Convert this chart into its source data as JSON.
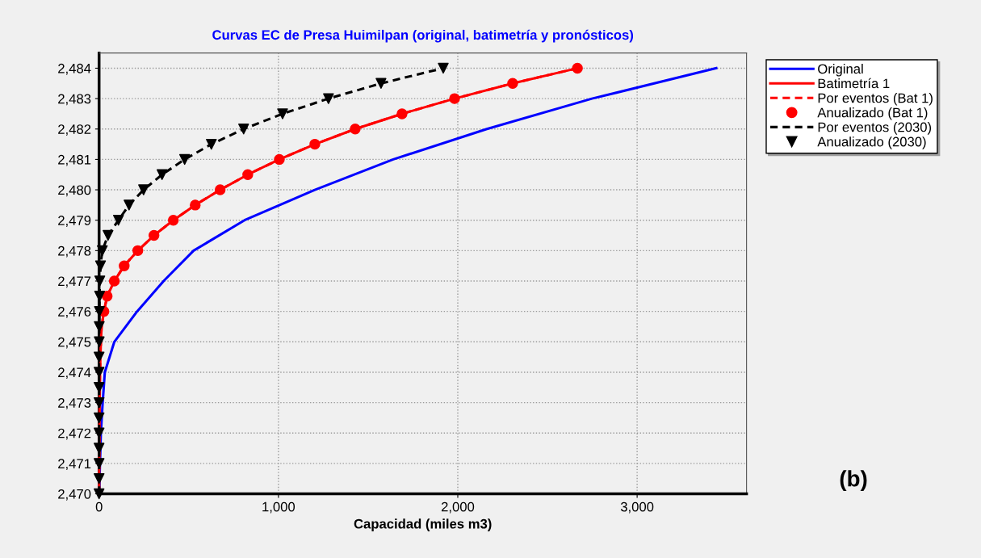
{
  "chart_data": {
    "type": "line",
    "title": "Curvas EC de Presa Huimilpan (original, batimetría y pronósticos)",
    "xlabel": "Capacidad (miles m3)",
    "xlim": [
      0,
      3610
    ],
    "ylim": [
      2470,
      2484.5
    ],
    "xticks": [
      0,
      {
        "value": 1000,
        "label": "1,000"
      },
      {
        "value": 2000,
        "label": "2,000"
      },
      {
        "value": 3000,
        "label": "3,000"
      }
    ],
    "yticks": [
      {
        "value": 2470,
        "label": "2,470"
      },
      {
        "value": 2471,
        "label": "2,471"
      },
      {
        "value": 2472,
        "label": "2,472"
      },
      {
        "value": 2473,
        "label": "2,473"
      },
      {
        "value": 2474,
        "label": "2,474"
      },
      {
        "value": 2475,
        "label": "2,475"
      },
      {
        "value": 2476,
        "label": "2,476"
      },
      {
        "value": 2477,
        "label": "2,477"
      },
      {
        "value": 2478,
        "label": "2,478"
      },
      {
        "value": 2479,
        "label": "2,479"
      },
      {
        "value": 2480,
        "label": "2,480"
      },
      {
        "value": 2481,
        "label": "2,481"
      },
      {
        "value": 2482,
        "label": "2,482"
      },
      {
        "value": 2483,
        "label": "2,483"
      },
      {
        "value": 2484,
        "label": "2,484"
      }
    ],
    "grid": true,
    "legend": "top right",
    "annotations": [
      "(b)"
    ],
    "series": [
      {
        "name": "Original",
        "color": "#0000ff",
        "line_style": "solid",
        "marker": "none",
        "x": [
          0,
          10,
          20,
          32,
          85,
          212,
          360,
          527,
          811,
          1203,
          1640,
          2162,
          2748,
          3441
        ],
        "values": [
          2470,
          2472,
          2473,
          2474,
          2475,
          2476,
          2477,
          2478,
          2479,
          2480,
          2481,
          2482,
          2483,
          2484
        ]
      },
      {
        "name": "Batimetría 1",
        "color": "#ff0000",
        "line_style": "solid",
        "marker": "none",
        "x": [
          0,
          1,
          2,
          3,
          5,
          10,
          14,
          27,
          45,
          85,
          140,
          216,
          306,
          414,
          536,
          675,
          829,
          1005,
          1203,
          1428,
          1689,
          1982,
          2306,
          2667
        ],
        "values": [
          2470,
          2471,
          2472,
          2473,
          2474,
          2475,
          2475.5,
          2476,
          2476.5,
          2477,
          2477.5,
          2478,
          2478.5,
          2479,
          2479.5,
          2480,
          2480.5,
          2481,
          2481.5,
          2482,
          2482.5,
          2483,
          2483.5,
          2484
        ]
      },
      {
        "name": "Por eventos (Bat 1)",
        "color": "#ff0000",
        "line_style": "dashed",
        "marker": "none",
        "x": [
          0,
          1,
          2,
          3,
          5,
          10,
          14,
          27,
          45,
          85,
          140,
          216,
          306,
          414,
          536,
          675,
          829,
          1005,
          1203,
          1428,
          1689,
          1982,
          2306,
          2667
        ],
        "values": [
          2470,
          2471,
          2472,
          2473,
          2474,
          2475,
          2475.5,
          2476,
          2476.5,
          2477,
          2477.5,
          2478,
          2478.5,
          2479,
          2479.5,
          2480,
          2480.5,
          2481,
          2481.5,
          2482,
          2482.5,
          2483,
          2483.5,
          2484
        ]
      },
      {
        "name": "Anualizado (Bat 1)",
        "type": "scatter",
        "color": "#ff0000",
        "marker": "circle",
        "x": [
          27,
          45,
          85,
          140,
          216,
          306,
          414,
          536,
          675,
          829,
          1005,
          1203,
          1428,
          1689,
          1982,
          2306,
          2667
        ],
        "values": [
          2476,
          2476.5,
          2477,
          2477.5,
          2478,
          2478.5,
          2479,
          2479.5,
          2480,
          2480.5,
          2481,
          2481.5,
          2482,
          2482.5,
          2483,
          2483.5,
          2484
        ]
      },
      {
        "name": "Por eventos (2030)",
        "color": "#000000",
        "line_style": "dashed",
        "marker": "none",
        "x": [
          0,
          0,
          0,
          0,
          0,
          0,
          0,
          0,
          0,
          0,
          1,
          1,
          2,
          3,
          4,
          8,
          18,
          50,
          108,
          167,
          248,
          351,
          477,
          626,
          806,
          1023,
          1279,
          1572,
          1919
        ],
        "values": [
          2470,
          2470.5,
          2471,
          2471.5,
          2472,
          2472.5,
          2473,
          2473.5,
          2474,
          2474.5,
          2475,
          2475.5,
          2476,
          2476.5,
          2477,
          2477.5,
          2478,
          2478.5,
          2479,
          2479.5,
          2480,
          2480.5,
          2481,
          2481.5,
          2482,
          2482.5,
          2483,
          2483.5,
          2484
        ]
      },
      {
        "name": "Anualizado (2030)",
        "type": "scatter",
        "color": "#000000",
        "marker": "triangle",
        "x": [
          0,
          0,
          0,
          0,
          0,
          0,
          0,
          0,
          0,
          0,
          1,
          1,
          2,
          3,
          4,
          8,
          18,
          50,
          108,
          167,
          248,
          351,
          477,
          626,
          806,
          1023,
          1279,
          1572,
          1919
        ],
        "values": [
          2470,
          2470.5,
          2471,
          2471.5,
          2472,
          2472.5,
          2473,
          2473.5,
          2474,
          2474.5,
          2475,
          2475.5,
          2476,
          2476.5,
          2477,
          2477.5,
          2478,
          2478.5,
          2479,
          2479.5,
          2480,
          2480.5,
          2481,
          2481.5,
          2482,
          2482.5,
          2483,
          2483.5,
          2484
        ]
      }
    ]
  }
}
